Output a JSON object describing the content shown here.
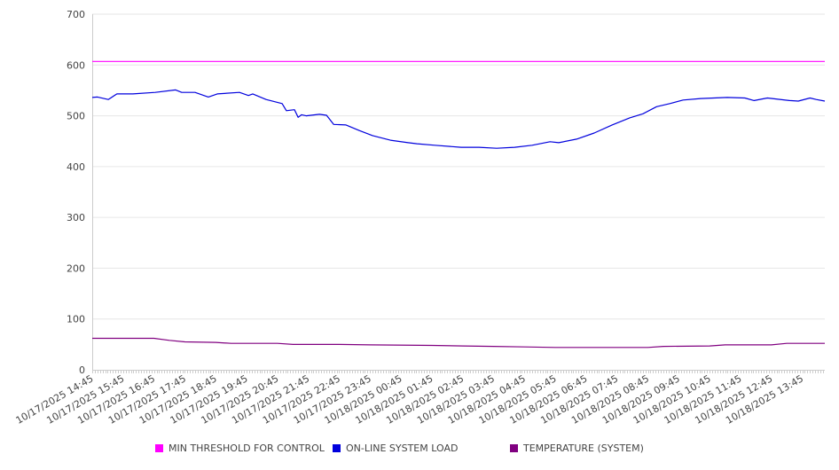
{
  "chart_data": {
    "type": "line",
    "title": "",
    "xlabel": "",
    "ylabel": "",
    "x_unit": "hours since 10/17/2025 14:45",
    "xlim": [
      0,
      23.73
    ],
    "ylim": [
      0,
      700
    ],
    "yticks": [
      0,
      100,
      200,
      300,
      400,
      500,
      600,
      700
    ],
    "xtick_labels": [
      "10/17/2025 14:45",
      "10/17/2025 15:45",
      "10/17/2025 16:45",
      "10/17/2025 17:45",
      "10/17/2025 18:45",
      "10/17/2025 19:45",
      "10/17/2025 20:45",
      "10/17/2025 21:45",
      "10/17/2025 22:45",
      "10/17/2025 23:45",
      "10/18/2025 00:45",
      "10/18/2025 01:45",
      "10/18/2025 02:45",
      "10/18/2025 03:45",
      "10/18/2025 04:45",
      "10/18/2025 05:45",
      "10/18/2025 06:45",
      "10/18/2025 07:45",
      "10/18/2025 08:45",
      "10/18/2025 09:45",
      "10/18/2025 10:45",
      "10/18/2025 11:45",
      "10/18/2025 12:45",
      "10/18/2025 13:45"
    ],
    "grid": true,
    "legend_position": "bottom",
    "series": [
      {
        "name": "MIN THRESHOLD FOR CONTROL",
        "color": "#ff00ff",
        "points": [
          [
            0,
            607
          ],
          [
            23.73,
            607
          ]
        ]
      },
      {
        "name": "ON-LINE SYSTEM LOAD",
        "color": "#0000dd",
        "points": [
          [
            0,
            536
          ],
          [
            0.17,
            537
          ],
          [
            0.52,
            532
          ],
          [
            0.8,
            543
          ],
          [
            1.32,
            543
          ],
          [
            2.04,
            546
          ],
          [
            2.7,
            551
          ],
          [
            2.9,
            546
          ],
          [
            3.33,
            546
          ],
          [
            3.76,
            537
          ],
          [
            4.05,
            543
          ],
          [
            4.77,
            546
          ],
          [
            5.06,
            540
          ],
          [
            5.2,
            543
          ],
          [
            5.63,
            532
          ],
          [
            6.15,
            524
          ],
          [
            6.29,
            510
          ],
          [
            6.55,
            512
          ],
          [
            6.67,
            497
          ],
          [
            6.78,
            502
          ],
          [
            6.93,
            500
          ],
          [
            7.36,
            503
          ],
          [
            7.59,
            501
          ],
          [
            7.82,
            483
          ],
          [
            8.22,
            482
          ],
          [
            8.65,
            471
          ],
          [
            9.08,
            461
          ],
          [
            9.66,
            452
          ],
          [
            10.23,
            447
          ],
          [
            10.52,
            445
          ],
          [
            11.1,
            442
          ],
          [
            11.95,
            438
          ],
          [
            12.53,
            438
          ],
          [
            13.1,
            436
          ],
          [
            13.68,
            438
          ],
          [
            14.25,
            442
          ],
          [
            14.83,
            449
          ],
          [
            15.11,
            447
          ],
          [
            15.69,
            454
          ],
          [
            16.26,
            466
          ],
          [
            16.84,
            482
          ],
          [
            17.41,
            496
          ],
          [
            17.84,
            504
          ],
          [
            18.28,
            518
          ],
          [
            18.71,
            524
          ],
          [
            19.14,
            531
          ],
          [
            19.71,
            534
          ],
          [
            20.57,
            536
          ],
          [
            21.14,
            535
          ],
          [
            21.44,
            530
          ],
          [
            21.87,
            535
          ],
          [
            22.59,
            530
          ],
          [
            22.87,
            529
          ],
          [
            23.25,
            535
          ],
          [
            23.45,
            532
          ],
          [
            23.73,
            529
          ]
        ]
      },
      {
        "name": "TEMPERATURE (SYSTEM)",
        "color": "#800080",
        "points": [
          [
            0,
            62
          ],
          [
            2,
            62
          ],
          [
            2.5,
            58
          ],
          [
            3,
            55
          ],
          [
            4,
            54
          ],
          [
            4.5,
            52
          ],
          [
            6,
            52
          ],
          [
            6.5,
            50
          ],
          [
            8,
            50
          ],
          [
            9,
            49
          ],
          [
            11,
            48
          ],
          [
            12,
            47
          ],
          [
            13,
            46
          ],
          [
            14,
            45
          ],
          [
            15,
            44
          ],
          [
            18,
            44
          ],
          [
            18.5,
            46
          ],
          [
            20,
            47
          ],
          [
            20.5,
            49
          ],
          [
            22,
            49
          ],
          [
            22.5,
            52
          ],
          [
            23.73,
            52
          ]
        ]
      }
    ]
  }
}
